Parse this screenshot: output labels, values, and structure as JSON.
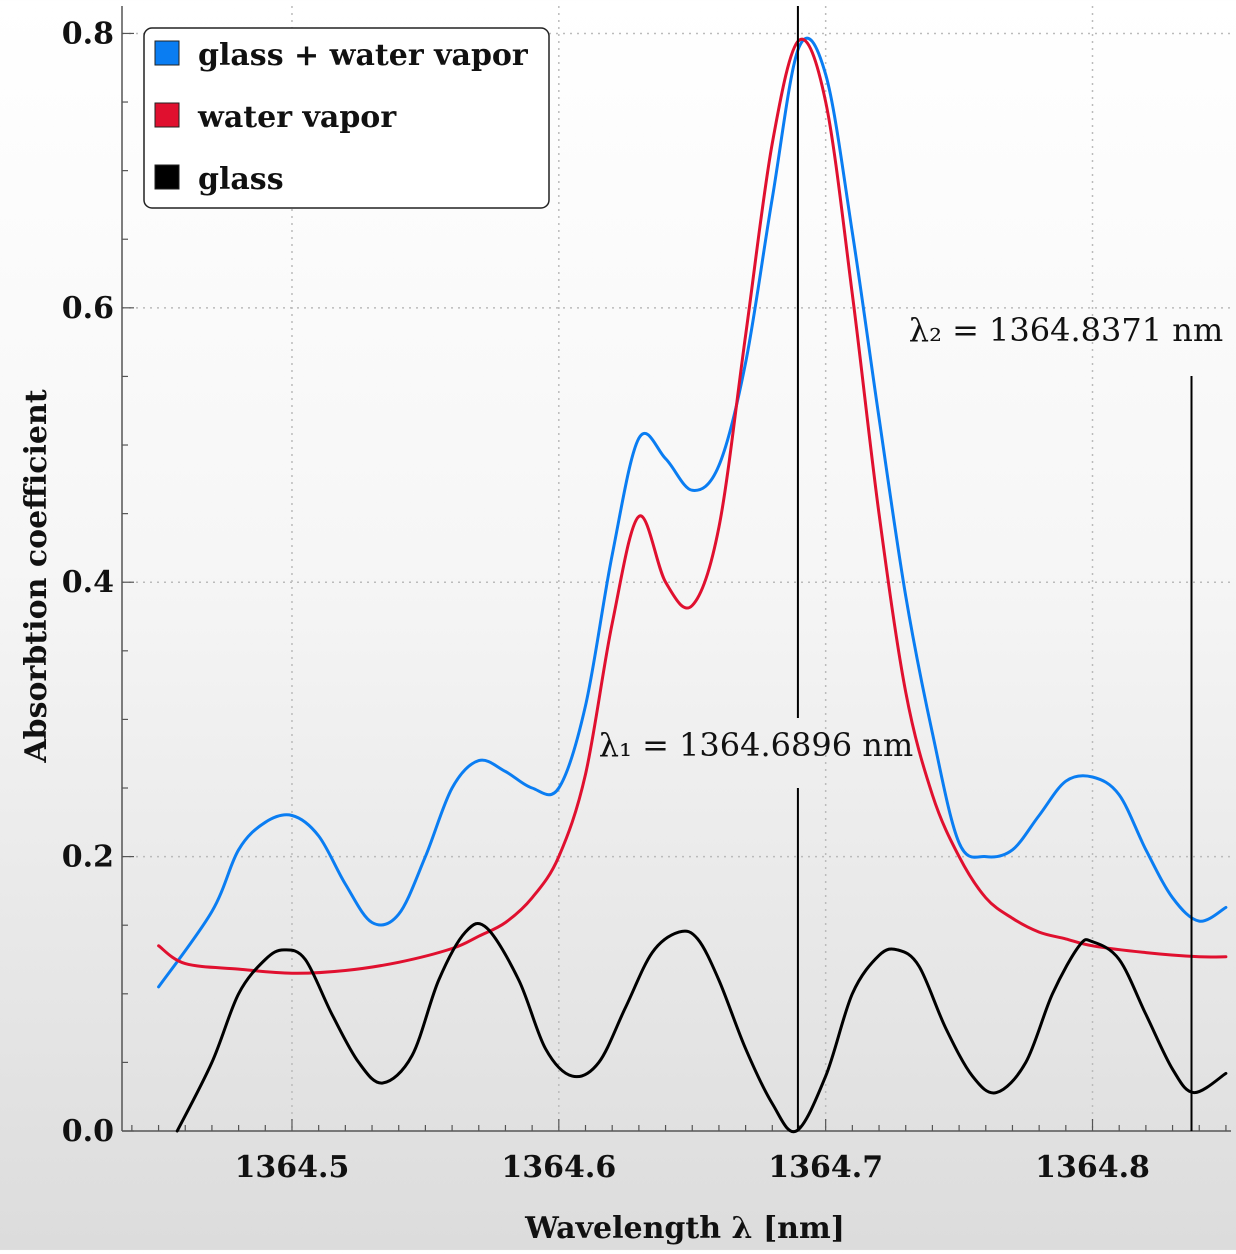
{
  "chart_data": {
    "type": "line",
    "xlabel": "Wavelength λ [nm]",
    "ylabel": "Absorbtion coefficient",
    "xlim": [
      1364.4363,
      1364.8519
    ],
    "ylim": [
      0,
      0.82
    ],
    "x_ticks": [
      1364.5,
      1364.6,
      1364.7,
      1364.8
    ],
    "x_tick_labels": [
      "1364.5",
      "1364.6",
      "1364.7",
      "1364.8"
    ],
    "y_ticks": [
      0,
      0.2,
      0.4,
      0.6,
      0.8
    ],
    "y_tick_labels": [
      "0.0",
      "0.2",
      "0.4",
      "0.6",
      "0.8"
    ],
    "grid": true,
    "legend": {
      "position": "top-left"
    },
    "series": [
      {
        "name": "glass + water vapor",
        "color": "#0a7df2",
        "x": [
          1364.45,
          1364.47,
          1364.48,
          1364.49,
          1364.5,
          1364.51,
          1364.52,
          1364.53,
          1364.54,
          1364.55,
          1364.56,
          1364.57,
          1364.58,
          1364.59,
          1364.6,
          1364.61,
          1364.62,
          1364.63,
          1364.64,
          1364.65,
          1364.66,
          1364.67,
          1364.68,
          1364.69,
          1364.7,
          1364.71,
          1364.72,
          1364.73,
          1364.74,
          1364.75,
          1364.76,
          1364.77,
          1364.78,
          1364.79,
          1364.8,
          1364.81,
          1364.82,
          1364.83,
          1364.84,
          1364.85
        ],
        "y": [
          0.105,
          0.16,
          0.205,
          0.225,
          0.23,
          0.215,
          0.18,
          0.152,
          0.158,
          0.2,
          0.25,
          0.27,
          0.262,
          0.25,
          0.25,
          0.31,
          0.42,
          0.505,
          0.49,
          0.467,
          0.485,
          0.56,
          0.68,
          0.79,
          0.77,
          0.655,
          0.52,
          0.39,
          0.29,
          0.21,
          0.2,
          0.205,
          0.23,
          0.255,
          0.258,
          0.245,
          0.205,
          0.17,
          0.153,
          0.163
        ]
      },
      {
        "name": "water vapor",
        "color": "#e0102f",
        "x": [
          1364.45,
          1364.46,
          1364.48,
          1364.5,
          1364.52,
          1364.54,
          1364.56,
          1364.57,
          1364.58,
          1364.59,
          1364.6,
          1364.61,
          1364.62,
          1364.63,
          1364.64,
          1364.65,
          1364.66,
          1364.67,
          1364.68,
          1364.69,
          1364.7,
          1364.71,
          1364.72,
          1364.73,
          1364.74,
          1364.75,
          1364.76,
          1364.77,
          1364.78,
          1364.79,
          1364.8,
          1364.82,
          1364.84,
          1364.85
        ],
        "y": [
          0.135,
          0.122,
          0.118,
          0.115,
          0.117,
          0.123,
          0.133,
          0.142,
          0.152,
          0.17,
          0.2,
          0.26,
          0.37,
          0.448,
          0.4,
          0.383,
          0.44,
          0.58,
          0.72,
          0.795,
          0.75,
          0.61,
          0.45,
          0.32,
          0.245,
          0.2,
          0.17,
          0.155,
          0.145,
          0.14,
          0.135,
          0.13,
          0.127,
          0.127
        ]
      },
      {
        "name": "glass",
        "color": "#000000",
        "x": [
          1364.457,
          1364.47,
          1364.48,
          1364.49,
          1364.497,
          1364.505,
          1364.515,
          1364.525,
          1364.534,
          1364.545,
          1364.555,
          1364.565,
          1364.573,
          1364.585,
          1364.595,
          1364.605,
          1364.615,
          1364.625,
          1364.635,
          1364.645,
          1364.652,
          1364.66,
          1364.67,
          1364.68,
          1364.689,
          1364.7,
          1364.71,
          1364.72,
          1364.727,
          1364.735,
          1364.745,
          1364.755,
          1364.764,
          1364.775,
          1364.785,
          1364.795,
          1364.8,
          1364.81,
          1364.82,
          1364.83,
          1364.838,
          1364.85
        ],
        "y": [
          0.0,
          0.05,
          0.1,
          0.125,
          0.132,
          0.125,
          0.085,
          0.05,
          0.035,
          0.055,
          0.11,
          0.145,
          0.148,
          0.11,
          0.06,
          0.04,
          0.05,
          0.09,
          0.13,
          0.145,
          0.14,
          0.11,
          0.06,
          0.02,
          0.0,
          0.04,
          0.1,
          0.128,
          0.132,
          0.12,
          0.075,
          0.04,
          0.028,
          0.05,
          0.1,
          0.135,
          0.138,
          0.125,
          0.085,
          0.045,
          0.028,
          0.042
        ]
      }
    ],
    "annotations": [
      {
        "label": "λ₁ = 1364.6896 nm",
        "x": 1364.6896
      },
      {
        "label": "λ₂ = 1364.8371 nm",
        "x": 1364.8371
      }
    ]
  }
}
